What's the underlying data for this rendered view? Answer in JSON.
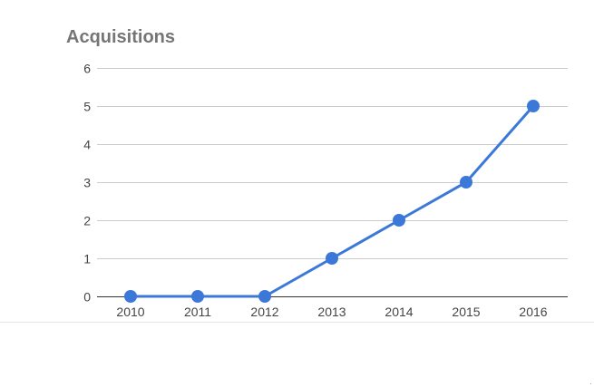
{
  "chart_data": {
    "type": "line",
    "title": "Acquisitions",
    "xlabel": "",
    "ylabel": "",
    "categories": [
      "2010",
      "2011",
      "2012",
      "2013",
      "2014",
      "2015",
      "2016"
    ],
    "series": [
      {
        "values": [
          0,
          0,
          0,
          1,
          2,
          3,
          5
        ]
      }
    ],
    "ylim": [
      0,
      6
    ],
    "yticks": [
      0,
      1,
      2,
      3,
      4,
      5,
      6
    ],
    "grid": true,
    "legend": "none",
    "colors": {
      "line": "#3c78d8",
      "grid": "#cccccc",
      "baseline": "#333333",
      "tick_text": "#444444",
      "title": "#757575"
    }
  }
}
